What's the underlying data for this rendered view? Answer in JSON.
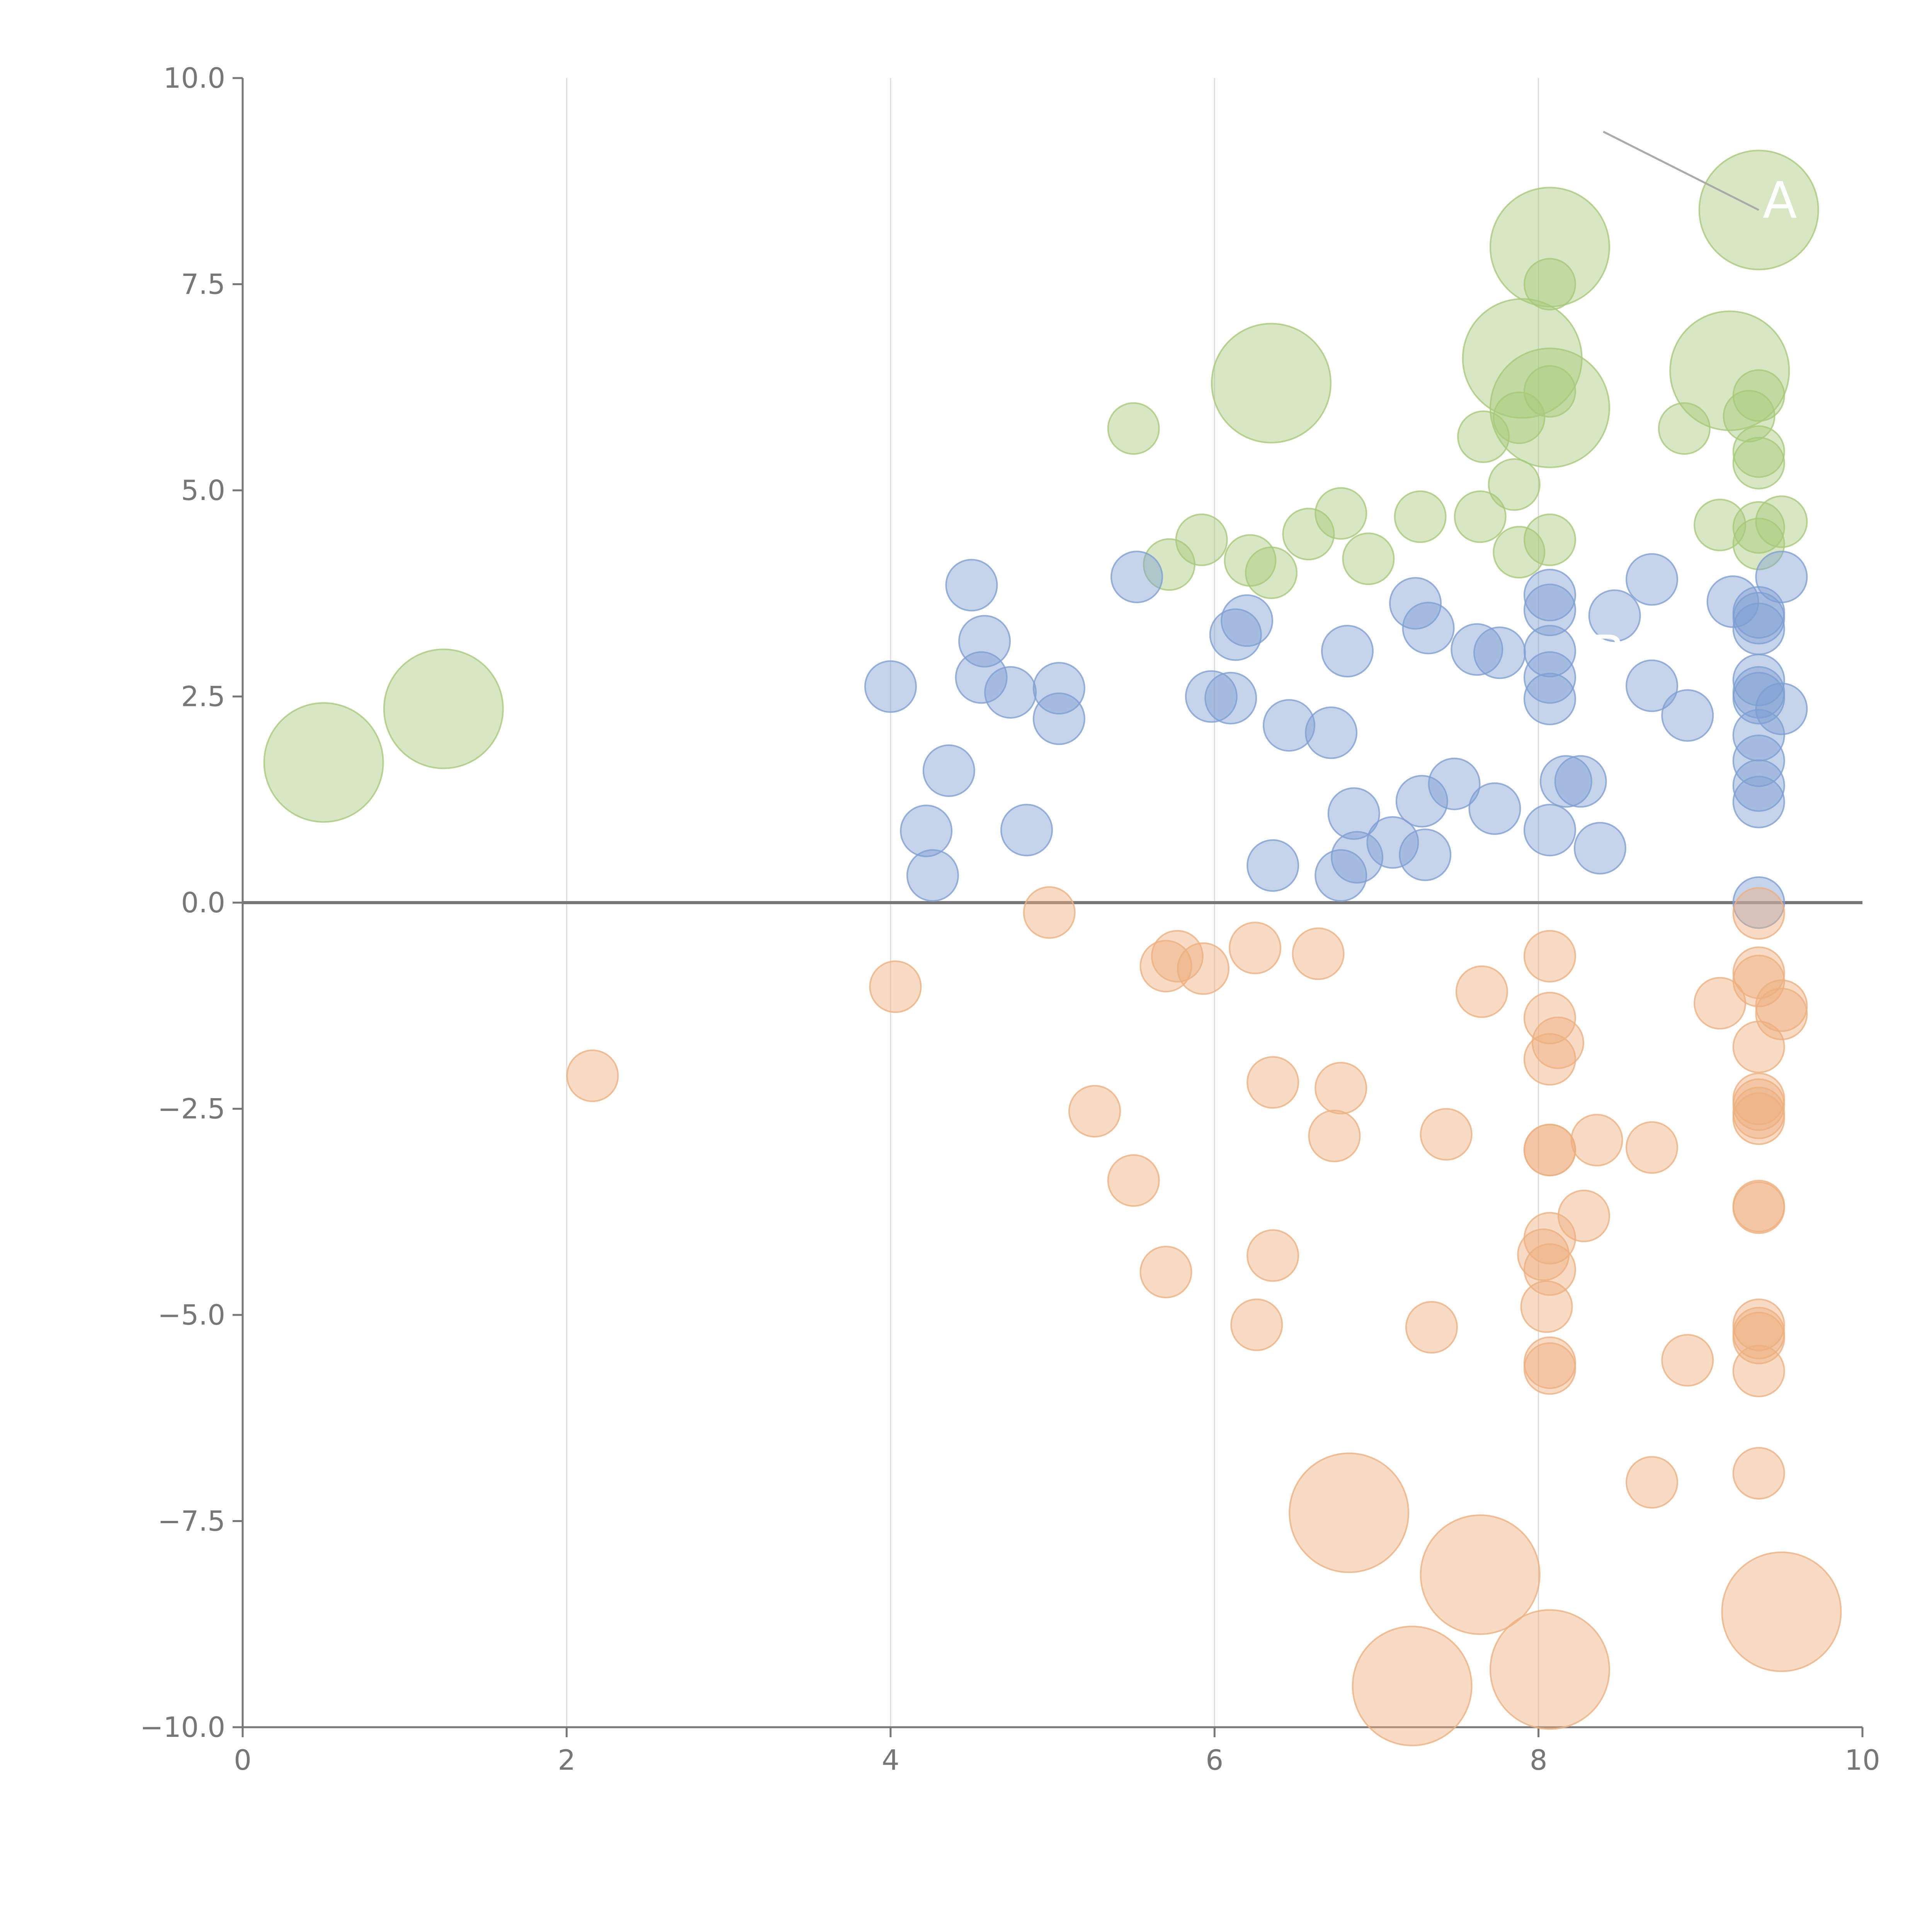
{
  "chart_data": {
    "type": "scatter",
    "title": "",
    "xlabel": "",
    "ylabel": "",
    "xlim": [
      0,
      10
    ],
    "ylim": [
      -10,
      10
    ],
    "x_ticks": [
      "0",
      "2",
      "4",
      "6",
      "8",
      "10"
    ],
    "x_tick_values": [
      0,
      2,
      4,
      6,
      8,
      10
    ],
    "y_ticks": [
      "10.0",
      "7.5",
      "5.0",
      "2.5",
      "0.0",
      "−2.5",
      "−5.0",
      "−7.5",
      "−10.0"
    ],
    "y_tick_values": [
      10,
      7.5,
      5,
      2.5,
      0,
      -2.5,
      -5,
      -7.5,
      -10
    ],
    "grid": "vertical",
    "baseline_y": 0,
    "point_opacity": 0.45,
    "annotations": [
      {
        "text": "A",
        "x": 9.36,
        "y": 8.4,
        "line_from": [
          8.4,
          9.35
        ]
      },
      {
        "text": "B",
        "x": 8.3,
        "y": 2.9,
        "line_from": null
      }
    ],
    "series": [
      {
        "color": "#a8c97a",
        "points": [
          {
            "x": 0.5,
            "y": 1.7,
            "r": 7
          },
          {
            "x": 1.24,
            "y": 2.35,
            "r": 7
          },
          {
            "x": 5.5,
            "y": 5.75,
            "r": 3
          },
          {
            "x": 5.72,
            "y": 4.1,
            "r": 3
          },
          {
            "x": 5.92,
            "y": 4.4,
            "r": 3
          },
          {
            "x": 6.22,
            "y": 4.15,
            "r": 3
          },
          {
            "x": 6.35,
            "y": 4.0,
            "r": 3
          },
          {
            "x": 6.35,
            "y": 6.3,
            "r": 7
          },
          {
            "x": 6.58,
            "y": 4.47,
            "r": 3
          },
          {
            "x": 6.78,
            "y": 4.72,
            "r": 3
          },
          {
            "x": 6.95,
            "y": 4.17,
            "r": 3
          },
          {
            "x": 7.27,
            "y": 4.68,
            "r": 3
          },
          {
            "x": 7.64,
            "y": 4.68,
            "r": 3
          },
          {
            "x": 7.66,
            "y": 5.65,
            "r": 3
          },
          {
            "x": 7.85,
            "y": 5.07,
            "r": 3
          },
          {
            "x": 7.88,
            "y": 4.25,
            "r": 3
          },
          {
            "x": 7.88,
            "y": 5.88,
            "r": 3
          },
          {
            "x": 7.9,
            "y": 6.6,
            "r": 7
          },
          {
            "x": 8.07,
            "y": 7.95,
            "r": 7
          },
          {
            "x": 8.07,
            "y": 6.0,
            "r": 7
          },
          {
            "x": 8.07,
            "y": 7.5,
            "r": 3
          },
          {
            "x": 8.07,
            "y": 6.2,
            "r": 3
          },
          {
            "x": 8.07,
            "y": 4.4,
            "r": 3
          },
          {
            "x": 8.9,
            "y": 5.75,
            "r": 3
          },
          {
            "x": 9.12,
            "y": 4.58,
            "r": 3
          },
          {
            "x": 9.18,
            "y": 6.45,
            "r": 7
          },
          {
            "x": 9.3,
            "y": 5.9,
            "r": 3
          },
          {
            "x": 9.36,
            "y": 8.4,
            "r": 7
          },
          {
            "x": 9.36,
            "y": 6.15,
            "r": 3
          },
          {
            "x": 9.36,
            "y": 5.47,
            "r": 3
          },
          {
            "x": 9.36,
            "y": 5.33,
            "r": 3
          },
          {
            "x": 9.36,
            "y": 4.55,
            "r": 3
          },
          {
            "x": 9.36,
            "y": 4.35,
            "r": 3
          },
          {
            "x": 9.5,
            "y": 4.62,
            "r": 3
          }
        ]
      },
      {
        "color": "#7f9fd2",
        "points": [
          {
            "x": 4.0,
            "y": 2.62,
            "r": 3
          },
          {
            "x": 4.22,
            "y": 0.87,
            "r": 3
          },
          {
            "x": 4.26,
            "y": 0.33,
            "r": 3
          },
          {
            "x": 4.36,
            "y": 1.6,
            "r": 3
          },
          {
            "x": 4.5,
            "y": 3.85,
            "r": 3
          },
          {
            "x": 4.56,
            "y": 2.73,
            "r": 3
          },
          {
            "x": 4.58,
            "y": 3.17,
            "r": 3
          },
          {
            "x": 4.74,
            "y": 2.55,
            "r": 3
          },
          {
            "x": 4.84,
            "y": 0.88,
            "r": 3
          },
          {
            "x": 5.04,
            "y": 2.6,
            "r": 3
          },
          {
            "x": 5.04,
            "y": 2.23,
            "r": 3
          },
          {
            "x": 5.52,
            "y": 3.95,
            "r": 3
          },
          {
            "x": 5.98,
            "y": 2.5,
            "r": 3
          },
          {
            "x": 6.1,
            "y": 2.48,
            "r": 3
          },
          {
            "x": 6.13,
            "y": 3.25,
            "r": 3
          },
          {
            "x": 6.2,
            "y": 3.42,
            "r": 3
          },
          {
            "x": 6.36,
            "y": 0.45,
            "r": 3
          },
          {
            "x": 6.46,
            "y": 2.15,
            "r": 3
          },
          {
            "x": 6.72,
            "y": 2.06,
            "r": 3
          },
          {
            "x": 6.78,
            "y": 0.33,
            "r": 3
          },
          {
            "x": 6.82,
            "y": 3.05,
            "r": 3
          },
          {
            "x": 6.86,
            "y": 1.08,
            "r": 3
          },
          {
            "x": 6.88,
            "y": 0.55,
            "r": 3
          },
          {
            "x": 7.1,
            "y": 0.73,
            "r": 3
          },
          {
            "x": 7.24,
            "y": 3.63,
            "r": 3
          },
          {
            "x": 7.28,
            "y": 1.23,
            "r": 3
          },
          {
            "x": 7.3,
            "y": 0.58,
            "r": 3
          },
          {
            "x": 7.32,
            "y": 3.33,
            "r": 3
          },
          {
            "x": 7.48,
            "y": 1.44,
            "r": 3
          },
          {
            "x": 7.62,
            "y": 3.07,
            "r": 3
          },
          {
            "x": 7.73,
            "y": 1.14,
            "r": 3
          },
          {
            "x": 7.76,
            "y": 3.03,
            "r": 3
          },
          {
            "x": 8.07,
            "y": 3.73,
            "r": 3
          },
          {
            "x": 8.07,
            "y": 3.55,
            "r": 3
          },
          {
            "x": 8.07,
            "y": 3.05,
            "r": 3
          },
          {
            "x": 8.07,
            "y": 2.73,
            "r": 3
          },
          {
            "x": 8.07,
            "y": 2.47,
            "r": 3
          },
          {
            "x": 8.07,
            "y": 0.88,
            "r": 3
          },
          {
            "x": 8.17,
            "y": 1.47,
            "r": 3
          },
          {
            "x": 8.26,
            "y": 1.47,
            "r": 3
          },
          {
            "x": 8.38,
            "y": 0.66,
            "r": 3
          },
          {
            "x": 8.47,
            "y": 3.48,
            "r": 3
          },
          {
            "x": 8.7,
            "y": 3.92,
            "r": 3
          },
          {
            "x": 8.7,
            "y": 2.63,
            "r": 3
          },
          {
            "x": 8.92,
            "y": 2.27,
            "r": 3
          },
          {
            "x": 9.2,
            "y": 3.65,
            "r": 3
          },
          {
            "x": 9.36,
            "y": 3.52,
            "r": 3
          },
          {
            "x": 9.36,
            "y": 3.45,
            "r": 3
          },
          {
            "x": 9.36,
            "y": 3.32,
            "r": 3
          },
          {
            "x": 9.36,
            "y": 2.7,
            "r": 3
          },
          {
            "x": 9.36,
            "y": 2.55,
            "r": 3
          },
          {
            "x": 9.36,
            "y": 2.48,
            "r": 3
          },
          {
            "x": 9.36,
            "y": 2.03,
            "r": 3
          },
          {
            "x": 9.36,
            "y": 1.72,
            "r": 3
          },
          {
            "x": 9.36,
            "y": 1.42,
            "r": 3
          },
          {
            "x": 9.36,
            "y": 1.22,
            "r": 3
          },
          {
            "x": 9.36,
            "y": 0.0,
            "r": 3
          },
          {
            "x": 9.5,
            "y": 3.95,
            "r": 3
          },
          {
            "x": 9.5,
            "y": 2.35,
            "r": 3
          }
        ]
      },
      {
        "color": "#eeb07f",
        "points": [
          {
            "x": 2.16,
            "y": -2.1,
            "r": 3
          },
          {
            "x": 4.03,
            "y": -1.02,
            "r": 3
          },
          {
            "x": 4.98,
            "y": -0.12,
            "r": 3
          },
          {
            "x": 5.26,
            "y": -2.53,
            "r": 3
          },
          {
            "x": 5.5,
            "y": -3.37,
            "r": 3
          },
          {
            "x": 5.7,
            "y": -0.77,
            "r": 3
          },
          {
            "x": 5.7,
            "y": -4.48,
            "r": 3
          },
          {
            "x": 5.77,
            "y": -0.65,
            "r": 3
          },
          {
            "x": 5.93,
            "y": -0.8,
            "r": 3
          },
          {
            "x": 6.25,
            "y": -0.55,
            "r": 3
          },
          {
            "x": 6.26,
            "y": -5.12,
            "r": 3
          },
          {
            "x": 6.36,
            "y": -2.18,
            "r": 3
          },
          {
            "x": 6.36,
            "y": -4.28,
            "r": 3
          },
          {
            "x": 6.64,
            "y": -0.62,
            "r": 3
          },
          {
            "x": 6.74,
            "y": -2.83,
            "r": 3
          },
          {
            "x": 6.78,
            "y": -2.25,
            "r": 3
          },
          {
            "x": 6.83,
            "y": -7.4,
            "r": 7
          },
          {
            "x": 7.22,
            "y": -9.5,
            "r": 7
          },
          {
            "x": 7.34,
            "y": -5.15,
            "r": 3
          },
          {
            "x": 7.43,
            "y": -2.81,
            "r": 3
          },
          {
            "x": 7.64,
            "y": -8.15,
            "r": 7
          },
          {
            "x": 7.65,
            "y": -1.08,
            "r": 3
          },
          {
            "x": 8.03,
            "y": -4.27,
            "r": 3
          },
          {
            "x": 8.05,
            "y": -4.9,
            "r": 3
          },
          {
            "x": 8.07,
            "y": -0.65,
            "r": 3
          },
          {
            "x": 8.07,
            "y": -1.4,
            "r": 3
          },
          {
            "x": 8.07,
            "y": -1.9,
            "r": 3
          },
          {
            "x": 8.07,
            "y": -3.0,
            "r": 3
          },
          {
            "x": 8.07,
            "y": -3.0,
            "r": 3
          },
          {
            "x": 8.07,
            "y": -4.07,
            "r": 3
          },
          {
            "x": 8.07,
            "y": -4.45,
            "r": 3
          },
          {
            "x": 8.07,
            "y": -5.58,
            "r": 3
          },
          {
            "x": 8.07,
            "y": -5.65,
            "r": 3
          },
          {
            "x": 8.07,
            "y": -9.3,
            "r": 7
          },
          {
            "x": 8.12,
            "y": -1.7,
            "r": 3
          },
          {
            "x": 8.28,
            "y": -3.8,
            "r": 3
          },
          {
            "x": 8.36,
            "y": -2.88,
            "r": 3
          },
          {
            "x": 8.7,
            "y": -2.97,
            "r": 3
          },
          {
            "x": 8.7,
            "y": -7.03,
            "r": 3
          },
          {
            "x": 8.92,
            "y": -5.55,
            "r": 3
          },
          {
            "x": 9.12,
            "y": -1.22,
            "r": 3
          },
          {
            "x": 9.36,
            "y": -0.13,
            "r": 3
          },
          {
            "x": 9.36,
            "y": -0.85,
            "r": 3
          },
          {
            "x": 9.36,
            "y": -0.95,
            "r": 3
          },
          {
            "x": 9.36,
            "y": -1.75,
            "r": 3
          },
          {
            "x": 9.36,
            "y": -2.38,
            "r": 3
          },
          {
            "x": 9.36,
            "y": -2.45,
            "r": 3
          },
          {
            "x": 9.36,
            "y": -2.55,
            "r": 3
          },
          {
            "x": 9.36,
            "y": -2.62,
            "r": 3
          },
          {
            "x": 9.36,
            "y": -3.68,
            "r": 3
          },
          {
            "x": 9.36,
            "y": -3.7,
            "r": 3
          },
          {
            "x": 9.36,
            "y": -5.12,
            "r": 3
          },
          {
            "x": 9.36,
            "y": -5.22,
            "r": 3
          },
          {
            "x": 9.36,
            "y": -5.28,
            "r": 3
          },
          {
            "x": 9.36,
            "y": -5.68,
            "r": 3
          },
          {
            "x": 9.36,
            "y": -6.92,
            "r": 3
          },
          {
            "x": 9.5,
            "y": -1.25,
            "r": 3
          },
          {
            "x": 9.5,
            "y": -1.35,
            "r": 3
          },
          {
            "x": 9.5,
            "y": -8.6,
            "r": 7
          }
        ]
      }
    ]
  }
}
